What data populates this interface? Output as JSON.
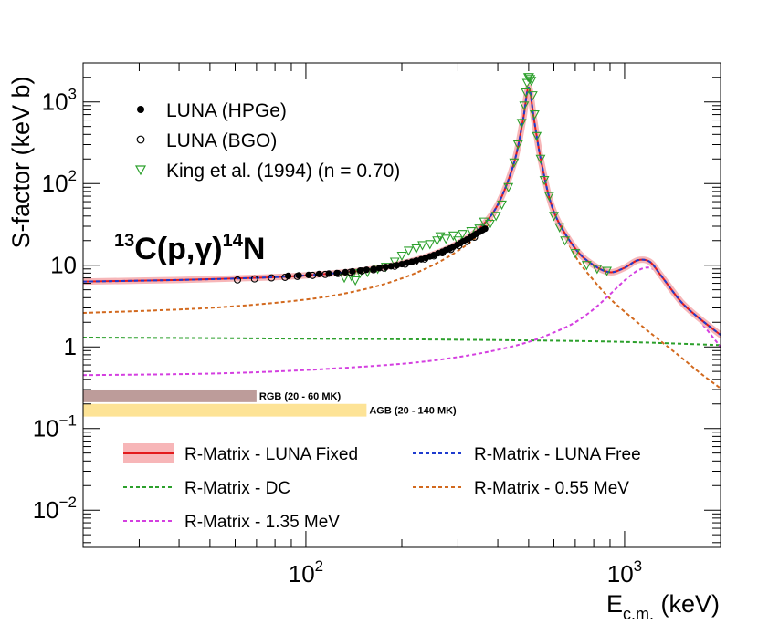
{
  "chart_data": {
    "type": "scatter",
    "title_reaction": {
      "pre_sup": "13",
      "base1": "C(p,",
      "gamma": "γ",
      "base2": ")",
      "post_sup": "14",
      "base3": "N"
    },
    "xlabel": {
      "main": "E",
      "sub": "c.m.",
      "unit": " (keV)"
    },
    "ylabel": "S-factor (keV b)",
    "x_scale": "log",
    "y_scale": "log",
    "xlim": [
      20,
      2000
    ],
    "ylim": [
      0.0035,
      3000
    ],
    "x_ticks": [
      {
        "value": 100,
        "base": "10",
        "exp": "2"
      },
      {
        "value": 1000,
        "base": "10",
        "exp": "3"
      }
    ],
    "y_ticks": [
      {
        "value": 0.01,
        "base": "10",
        "exp": "−2"
      },
      {
        "value": 0.1,
        "base": "10",
        "exp": "−1"
      },
      {
        "value": 1,
        "base": "1",
        "exp": ""
      },
      {
        "value": 10,
        "base": "10",
        "exp": ""
      },
      {
        "value": 100,
        "base": "10",
        "exp": "2"
      },
      {
        "value": 1000,
        "base": "10",
        "exp": "3"
      }
    ],
    "grid": false,
    "legend_top": [
      {
        "label": "LUNA (HPGe)",
        "marker": "filled-circle"
      },
      {
        "label": "LUNA (BGO)",
        "marker": "open-circle"
      },
      {
        "label": "King et al. (1994) (n = 0.70)",
        "marker": "open-triangle-down"
      }
    ],
    "legend_bottom": [
      {
        "label": "R-Matrix - LUNA Fixed",
        "style": "red-band"
      },
      {
        "label": "R-Matrix - LUNA Free",
        "style": "blue-dashed"
      },
      {
        "label": "R-Matrix - DC",
        "style": "green-dashed"
      },
      {
        "label": "R-Matrix - 0.55 MeV",
        "style": "orange-dashed"
      },
      {
        "label": "R-Matrix - 1.35 MeV",
        "style": "magenta-dashed"
      }
    ],
    "bands": [
      {
        "label": "RGB (20 - 60 MK)",
        "x_range": [
          20,
          70
        ],
        "y_range": [
          0.21,
          0.3
        ],
        "color": "#bd9c9a"
      },
      {
        "label": "AGB (20 - 140 MK)",
        "x_range": [
          20,
          155
        ],
        "y_range": [
          0.14,
          0.2
        ],
        "color": "#fde396"
      }
    ],
    "series": [
      {
        "name": "R-Matrix - LUNA Fixed",
        "style": "line",
        "color": "#e31a1c",
        "band_color": "#f7b6b8",
        "x": [
          20,
          40,
          70,
          100,
          150,
          200,
          250,
          300,
          350,
          400,
          450,
          480,
          500,
          520,
          550,
          600,
          700,
          800,
          900,
          1000,
          1100,
          1200,
          1300,
          1500,
          1700,
          2000
        ],
        "y": [
          6.3,
          6.6,
          7.0,
          7.5,
          8.6,
          10.5,
          13.5,
          18.5,
          28,
          55,
          180,
          600,
          1500,
          600,
          170,
          45,
          16,
          10,
          8.2,
          9.3,
          11.5,
          11.0,
          7.5,
          3.6,
          2.3,
          1.4
        ]
      },
      {
        "name": "R-Matrix - LUNA Free",
        "style": "dashed",
        "color": "#1f3ccf",
        "x": [
          20,
          40,
          70,
          100,
          150,
          200,
          250,
          300,
          350,
          400,
          450,
          480,
          500,
          520,
          550,
          600,
          700,
          800,
          900,
          1000,
          1100,
          1200,
          1300,
          1500,
          1700,
          2000
        ],
        "y": [
          6.3,
          6.6,
          7.0,
          7.5,
          8.6,
          10.5,
          13.5,
          18.5,
          28,
          55,
          180,
          600,
          1500,
          600,
          170,
          45,
          16,
          10,
          8.2,
          9.3,
          11.5,
          11.0,
          7.5,
          3.6,
          2.3,
          1.4
        ]
      },
      {
        "name": "R-Matrix - DC",
        "style": "dashed",
        "color": "#2ca02c",
        "x": [
          20,
          50,
          100,
          200,
          500,
          1000,
          2000
        ],
        "y": [
          1.3,
          1.28,
          1.26,
          1.24,
          1.2,
          1.15,
          1.05
        ]
      },
      {
        "name": "R-Matrix - 0.55 MeV",
        "style": "dashed",
        "color": "#d2691e",
        "x": [
          20,
          50,
          100,
          150,
          200,
          250,
          300,
          350,
          400,
          450,
          480,
          500,
          520,
          550,
          600,
          700,
          800,
          900,
          1000,
          1200,
          1500,
          1700,
          2000
        ],
        "y": [
          2.6,
          3.0,
          3.8,
          5.0,
          6.9,
          10,
          15,
          24,
          48,
          160,
          560,
          1400,
          560,
          160,
          45,
          13,
          6.5,
          3.9,
          2.7,
          1.5,
          0.75,
          0.5,
          0.31
        ]
      },
      {
        "name": "R-Matrix - 1.35 MeV",
        "style": "dashed",
        "color": "#d43fe0",
        "x": [
          20,
          50,
          100,
          200,
          300,
          400,
          500,
          600,
          700,
          800,
          900,
          1000,
          1100,
          1200,
          1300,
          1500,
          1700,
          2000
        ],
        "y": [
          0.45,
          0.47,
          0.52,
          0.62,
          0.75,
          0.92,
          1.15,
          1.5,
          2.0,
          2.9,
          4.4,
          6.5,
          8.6,
          9.3,
          7.4,
          3.7,
          2.2,
          1.0
        ]
      },
      {
        "name": "LUNA (HPGe)",
        "style": "filled-circle",
        "color": "#000000",
        "x": [
          88,
          95,
          102,
          110,
          118,
          125,
          133,
          140,
          148,
          155,
          163,
          170,
          178,
          185,
          193,
          200,
          208,
          215,
          222,
          230,
          238,
          245,
          252,
          260,
          268,
          275,
          283,
          290,
          298,
          305,
          312,
          320,
          328,
          335,
          342,
          350,
          358,
          365
        ],
        "y": [
          7.4,
          7.5,
          7.6,
          7.8,
          7.9,
          8.0,
          8.2,
          8.4,
          8.6,
          8.8,
          9.0,
          9.2,
          9.5,
          9.7,
          10.0,
          10.3,
          10.7,
          11.0,
          11.4,
          11.8,
          12.3,
          12.8,
          13.3,
          14.0,
          14.6,
          15.3,
          16.0,
          16.8,
          17.7,
          18.6,
          19.6,
          20.6,
          21.8,
          23.0,
          24.2,
          25.5,
          26.8,
          28.0
        ]
      },
      {
        "name": "LUNA (BGO)",
        "style": "open-circle",
        "color": "#000000",
        "x": [
          61,
          69,
          78,
          86,
          94,
          105,
          115,
          126,
          138,
          150,
          163,
          176,
          190,
          205,
          220,
          236,
          252,
          268,
          285,
          302,
          320,
          338
        ],
        "y": [
          6.6,
          6.8,
          7.0,
          7.1,
          7.3,
          7.5,
          7.7,
          7.9,
          8.2,
          8.5,
          8.8,
          9.2,
          9.7,
          10.3,
          11.0,
          11.9,
          13.0,
          14.2,
          15.6,
          17.3,
          19.5,
          22.0
        ]
      },
      {
        "name": "King et al. (1994) (n = 0.70)",
        "style": "open-triangle-down",
        "color": "#2ca02c",
        "x": [
          132,
          139,
          143,
          148,
          156,
          168,
          178,
          190,
          200,
          210,
          222,
          232,
          245,
          258,
          264,
          275,
          290,
          300,
          310,
          330,
          350,
          362,
          378,
          395,
          412,
          432,
          450,
          463,
          475,
          484,
          490,
          494,
          498,
          502,
          506,
          510,
          515,
          522,
          530,
          545,
          560,
          580,
          600,
          625,
          650,
          700,
          760,
          820,
          880
        ],
        "y": [
          7.0,
          7.3,
          6.5,
          8.0,
          8.2,
          9.0,
          9.5,
          11.0,
          13.0,
          15.0,
          16.0,
          17.5,
          18.0,
          20.0,
          22.5,
          21.0,
          23.0,
          20.0,
          24.0,
          26.0,
          28.0,
          34.0,
          32.0,
          40.0,
          55.0,
          90.0,
          180.0,
          300.0,
          550.0,
          900.0,
          1300.0,
          1700.0,
          2000.0,
          2000.0,
          1900.0,
          1800.0,
          1200.0,
          700.0,
          380.0,
          200.0,
          110.0,
          70.0,
          40.0,
          29.0,
          20.0,
          14.0,
          10.0,
          9.0,
          8.5
        ]
      }
    ]
  }
}
